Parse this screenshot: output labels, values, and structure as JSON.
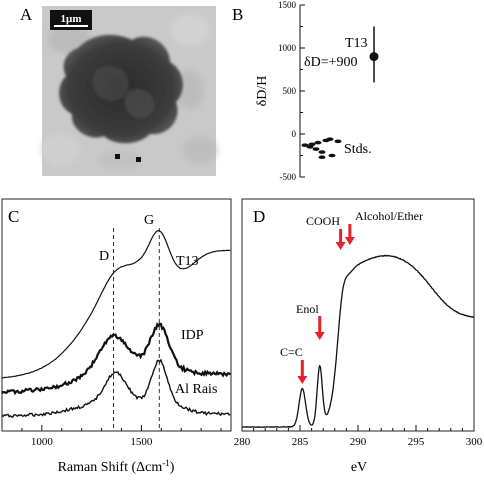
{
  "figure": {
    "panels": {
      "A": {
        "letter": "A",
        "scale_bar": "1µm"
      },
      "B": {
        "letter": "B"
      },
      "C": {
        "letter": "C"
      },
      "D": {
        "letter": "D"
      }
    }
  },
  "chart_data": [
    {
      "panel": "A",
      "type": "image",
      "scale_bar_label": "1µm"
    },
    {
      "panel": "B",
      "type": "scatter",
      "ylabel": "δD/H",
      "ylim": [
        -500,
        1500
      ],
      "yticks": [
        -500,
        0,
        500,
        1000,
        1500
      ],
      "sample": {
        "name": "T13",
        "label": "δD=+900",
        "value": 900,
        "error_low": 600,
        "error_high": 1250
      },
      "standards": {
        "label": "Stds.",
        "values": [
          -130,
          -150,
          -175,
          -210,
          -100,
          -60,
          -75,
          -250,
          -85,
          -270,
          -120
        ]
      }
    },
    {
      "panel": "C",
      "type": "line",
      "xlabel": "Raman Shift (Δcm",
      "xlabel_sup": "-1",
      "xlabel_end": ")",
      "xlim": [
        800,
        1950
      ],
      "xticks": [
        1000,
        1500
      ],
      "peak_labels": [
        {
          "label": "D",
          "x": 1360
        },
        {
          "label": "G",
          "x": 1590
        }
      ],
      "series": [
        {
          "name": "T13"
        },
        {
          "name": "IDP"
        },
        {
          "name": "Al Rais"
        }
      ]
    },
    {
      "panel": "D",
      "type": "line",
      "xlabel": "eV",
      "xlim": [
        280,
        300
      ],
      "xticks": [
        280,
        285,
        290,
        295,
        300
      ],
      "annotations": [
        {
          "label": "C=C",
          "x": 285.2
        },
        {
          "label": "Enol",
          "x": 286.7
        },
        {
          "label": "COOH",
          "x": 288.5
        },
        {
          "label": "Alcohol/Ether",
          "x": 289.3
        }
      ],
      "arrow_color": "#e8202a"
    }
  ]
}
